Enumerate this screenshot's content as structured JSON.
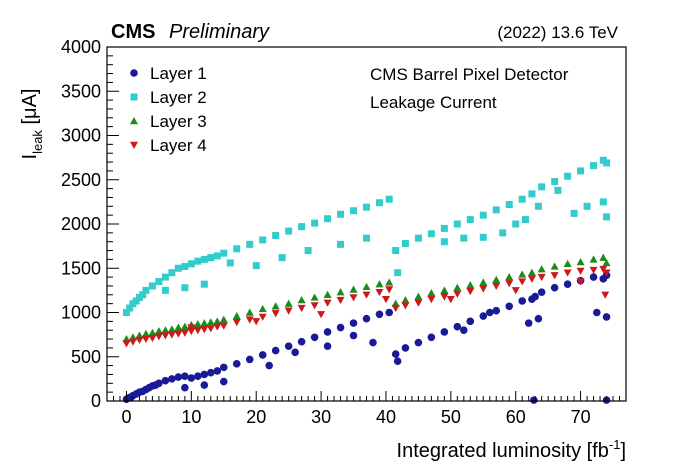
{
  "chart_data": {
    "type": "scatter",
    "header": {
      "experiment": "CMS",
      "status": "Preliminary",
      "run_info": "(2022) 13.6 TeV"
    },
    "annotations": [
      "CMS Barrel Pixel Detector",
      "Leakage Current"
    ],
    "xlabel": {
      "main": "Integrated luminosity [fb",
      "sup": "-1",
      "close": "]"
    },
    "ylabel": {
      "main": "I",
      "sub": "leak",
      "unit": " [μA]"
    },
    "xlim": [
      -3,
      77
    ],
    "ylim": [
      0,
      4000
    ],
    "x_ticks": [
      0,
      10,
      20,
      30,
      40,
      50,
      60,
      70
    ],
    "y_ticks": [
      0,
      500,
      1000,
      1500,
      2000,
      2500,
      3000,
      3500,
      4000
    ],
    "legend_position": "top-left",
    "series": [
      {
        "name": "Layer 1",
        "marker": "circle",
        "color": "#1a1a99",
        "x": [
          0.0,
          0.5,
          1.0,
          1.5,
          2.0,
          2.5,
          3.0,
          3.5,
          4.0,
          4.5,
          5.0,
          6.0,
          7.0,
          8.0,
          9.0,
          10.0,
          11.0,
          12.0,
          13.0,
          14.0,
          15.0,
          17.0,
          19.0,
          21.0,
          23.0,
          25.0,
          27.0,
          29.0,
          31.0,
          33.0,
          35.0,
          37.0,
          39.0,
          40.5,
          41.5,
          43.0,
          45.0,
          47.0,
          49.0,
          51.0,
          53.0,
          55.0,
          57.0,
          59.0,
          61.0,
          62.5,
          63.0,
          64.0,
          66.0,
          68.0,
          70.0,
          72.0,
          73.5,
          74.0,
          9.0,
          12.0,
          15.0,
          22.0,
          26.0,
          31.0,
          35.0,
          38.0,
          41.8,
          52.0,
          56.0,
          62.0,
          63.5,
          72.5,
          74.0,
          62.8,
          74.0
        ],
        "values": [
          20,
          40,
          60,
          80,
          100,
          110,
          130,
          150,
          170,
          180,
          200,
          230,
          250,
          270,
          280,
          260,
          280,
          300,
          320,
          340,
          380,
          420,
          470,
          520,
          570,
          620,
          670,
          720,
          780,
          830,
          880,
          930,
          980,
          1000,
          530,
          600,
          660,
          720,
          780,
          840,
          900,
          960,
          1020,
          1070,
          1130,
          1150,
          1180,
          1230,
          1280,
          1320,
          1360,
          1400,
          1380,
          1420,
          150,
          180,
          220,
          400,
          550,
          620,
          740,
          660,
          450,
          800,
          1000,
          880,
          930,
          1000,
          950,
          10,
          10
        ]
      },
      {
        "name": "Layer 2",
        "marker": "square",
        "color": "#33cccc",
        "x": [
          0.0,
          0.5,
          1.0,
          1.5,
          2.0,
          2.5,
          3.0,
          4.0,
          5.0,
          6.0,
          7.0,
          8.0,
          9.0,
          10.0,
          11.0,
          12.0,
          13.0,
          14.0,
          15.0,
          17.0,
          19.0,
          21.0,
          23.0,
          25.0,
          27.0,
          29.0,
          31.0,
          33.0,
          35.0,
          37.0,
          39.0,
          40.5,
          41.5,
          43.0,
          45.0,
          47.0,
          49.0,
          51.0,
          53.0,
          55.0,
          57.0,
          59.0,
          61.0,
          62.5,
          64.0,
          66.0,
          68.0,
          70.0,
          72.0,
          73.5,
          74.0,
          6.0,
          9.0,
          12.0,
          16.0,
          20.0,
          24.0,
          28.0,
          33.0,
          37.0,
          41.8,
          49.0,
          52.0,
          55.0,
          58.0,
          60.0,
          61.5,
          63.5,
          66.5,
          69.0,
          71.0,
          73.5,
          74.0
        ],
        "values": [
          1000,
          1050,
          1100,
          1130,
          1170,
          1200,
          1250,
          1300,
          1350,
          1400,
          1450,
          1500,
          1520,
          1550,
          1580,
          1600,
          1620,
          1640,
          1670,
          1720,
          1770,
          1820,
          1870,
          1920,
          1970,
          2010,
          2060,
          2110,
          2150,
          2190,
          2240,
          2280,
          1700,
          1780,
          1840,
          1890,
          1950,
          2000,
          2050,
          2100,
          2160,
          2220,
          2280,
          2340,
          2420,
          2480,
          2540,
          2600,
          2660,
          2720,
          2690,
          1250,
          1280,
          1320,
          1560,
          1530,
          1620,
          1700,
          1770,
          1840,
          1450,
          1800,
          1840,
          1850,
          1900,
          2000,
          2050,
          2200,
          2380,
          2120,
          2200,
          2250,
          2080
        ]
      },
      {
        "name": "Layer 3",
        "marker": "triangle-up",
        "color": "#1a8c1a",
        "x": [
          0.0,
          1.0,
          2.0,
          3.0,
          4.0,
          5.0,
          6.0,
          7.0,
          8.0,
          9.0,
          10.0,
          11.0,
          12.0,
          13.0,
          14.0,
          15.0,
          17.0,
          19.0,
          21.0,
          23.0,
          25.0,
          27.0,
          29.0,
          31.0,
          33.0,
          35.0,
          37.0,
          39.0,
          40.5,
          41.5,
          43.0,
          45.0,
          47.0,
          49.0,
          51.0,
          53.0,
          55.0,
          57.0,
          59.0,
          61.0,
          62.5,
          64.0,
          66.0,
          68.0,
          70.0,
          72.0,
          73.5,
          74.0
        ],
        "values": [
          700,
          720,
          740,
          760,
          770,
          790,
          800,
          810,
          830,
          840,
          860,
          870,
          880,
          890,
          900,
          920,
          960,
          1000,
          1040,
          1070,
          1100,
          1140,
          1170,
          1200,
          1230,
          1260,
          1290,
          1320,
          1340,
          1100,
          1140,
          1180,
          1220,
          1250,
          1280,
          1310,
          1340,
          1370,
          1400,
          1430,
          1450,
          1490,
          1520,
          1550,
          1570,
          1600,
          1620,
          1560
        ]
      },
      {
        "name": "Layer 4",
        "marker": "triangle-down",
        "color": "#cc1a1a",
        "x": [
          0.0,
          1.0,
          2.0,
          3.0,
          4.0,
          5.0,
          6.0,
          7.0,
          8.0,
          9.0,
          10.0,
          11.0,
          12.0,
          13.0,
          14.0,
          15.0,
          17.0,
          19.0,
          21.0,
          23.0,
          25.0,
          27.0,
          29.0,
          31.0,
          33.0,
          35.0,
          37.0,
          39.0,
          40.5,
          41.5,
          43.0,
          45.0,
          47.0,
          49.0,
          51.0,
          53.0,
          55.0,
          57.0,
          59.0,
          61.0,
          62.5,
          64.0,
          66.0,
          68.0,
          70.0,
          72.0,
          73.5,
          74.0,
          10.0,
          20.0,
          30.0,
          40.0,
          50.0,
          60.0,
          70.0,
          73.8
        ],
        "values": [
          650,
          670,
          690,
          700,
          710,
          730,
          740,
          750,
          760,
          770,
          790,
          800,
          810,
          820,
          840,
          850,
          890,
          920,
          950,
          990,
          1020,
          1050,
          1080,
          1110,
          1140,
          1170,
          1200,
          1230,
          1260,
          1050,
          1080,
          1110,
          1150,
          1180,
          1210,
          1240,
          1270,
          1300,
          1330,
          1350,
          1380,
          1400,
          1420,
          1450,
          1470,
          1480,
          1490,
          1450,
          830,
          900,
          980,
          1150,
          1150,
          1250,
          1350,
          1200
        ]
      }
    ]
  }
}
